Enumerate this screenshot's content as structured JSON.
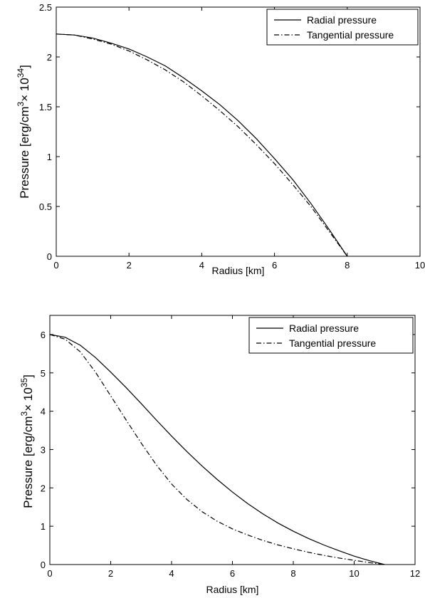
{
  "chart_data": [
    {
      "type": "line",
      "xlabel": "Radius [km]",
      "ylabel": {
        "prefix": "Pressure [erg/cm",
        "unit_exp": "3",
        "times": "× 10",
        "scale_exp": "34",
        "suffix": "]"
      },
      "xlim": [
        0,
        10
      ],
      "ylim": [
        0,
        2.5
      ],
      "xticks": [
        0,
        2,
        4,
        6,
        8,
        10
      ],
      "yticks": [
        0,
        0.5,
        1,
        1.5,
        2,
        2.5
      ],
      "xtick_labels": [
        "0",
        "2",
        "4",
        "6",
        "8",
        "10"
      ],
      "ytick_labels": [
        "0",
        "0.5",
        "1",
        "1.5",
        "2",
        "2.5"
      ],
      "grid": false,
      "legend_position": "top-right",
      "series": [
        {
          "name": "Radial pressure",
          "style": "solid",
          "x": [
            0,
            0.5,
            1,
            1.5,
            2,
            2.5,
            3,
            3.5,
            4,
            4.5,
            5,
            5.5,
            6,
            6.5,
            7,
            7.5,
            8
          ],
          "y": [
            2.23,
            2.22,
            2.19,
            2.14,
            2.08,
            2.0,
            1.91,
            1.79,
            1.66,
            1.52,
            1.36,
            1.18,
            0.98,
            0.77,
            0.53,
            0.27,
            0
          ]
        },
        {
          "name": "Tangential pressure",
          "style": "dashdot",
          "x": [
            0,
            0.5,
            1,
            1.5,
            2,
            2.5,
            3,
            3.5,
            4,
            4.5,
            5,
            5.5,
            6,
            6.5,
            7,
            7.5,
            8
          ],
          "y": [
            2.23,
            2.22,
            2.18,
            2.13,
            2.06,
            1.97,
            1.87,
            1.75,
            1.61,
            1.46,
            1.3,
            1.12,
            0.93,
            0.72,
            0.5,
            0.25,
            0
          ]
        }
      ]
    },
    {
      "type": "line",
      "xlabel": "Radius [km]",
      "ylabel": {
        "prefix": "Pressure [erg/cm",
        "unit_exp": "3",
        "times": "× 10",
        "scale_exp": "35",
        "suffix": "]"
      },
      "xlim": [
        0,
        12
      ],
      "ylim": [
        0,
        6.5
      ],
      "xticks": [
        0,
        2,
        4,
        6,
        8,
        10,
        12
      ],
      "yticks": [
        0,
        1,
        2,
        3,
        4,
        5,
        6
      ],
      "xtick_labels": [
        "0",
        "2",
        "4",
        "6",
        "8",
        "10",
        "12"
      ],
      "ytick_labels": [
        "0",
        "1",
        "2",
        "3",
        "4",
        "5",
        "6"
      ],
      "grid": false,
      "legend_position": "top-right",
      "series": [
        {
          "name": "Radial pressure",
          "style": "solid",
          "x": [
            0,
            0.5,
            1,
            1.5,
            2,
            2.5,
            3,
            3.5,
            4,
            4.5,
            5,
            5.5,
            6,
            6.5,
            7,
            7.5,
            8,
            8.5,
            9,
            9.5,
            10,
            10.5,
            11
          ],
          "y": [
            6.0,
            5.93,
            5.72,
            5.4,
            5.02,
            4.62,
            4.2,
            3.77,
            3.35,
            2.95,
            2.57,
            2.22,
            1.89,
            1.59,
            1.32,
            1.08,
            0.87,
            0.68,
            0.51,
            0.36,
            0.22,
            0.1,
            0
          ]
        },
        {
          "name": "Tangential pressure",
          "style": "dashdot",
          "x": [
            0,
            0.5,
            1,
            1.5,
            2,
            2.5,
            3,
            3.5,
            4,
            4.5,
            5,
            5.5,
            6,
            6.5,
            7,
            7.5,
            8,
            8.5,
            9,
            9.5,
            10,
            10.5,
            11
          ],
          "y": [
            6.0,
            5.88,
            5.55,
            5.02,
            4.4,
            3.78,
            3.17,
            2.6,
            2.1,
            1.7,
            1.38,
            1.13,
            0.93,
            0.77,
            0.63,
            0.51,
            0.41,
            0.32,
            0.24,
            0.17,
            0.11,
            0.05,
            0
          ]
        }
      ]
    }
  ]
}
